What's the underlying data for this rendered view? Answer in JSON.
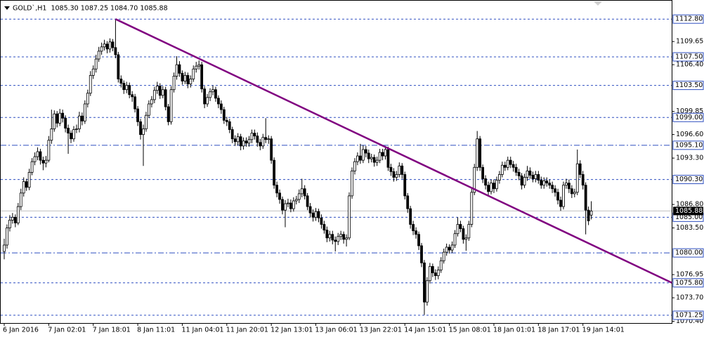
{
  "chart_data": {
    "type": "candlestick",
    "title": "GOLD`,H1  1085.30 1087.25 1084.70 1085.88",
    "categories": [
      "6 Jan 2016",
      null,
      null,
      null,
      null,
      null,
      null,
      null,
      null,
      null,
      null,
      null,
      null,
      null,
      null,
      null,
      "7 Jan 02:01",
      null,
      null,
      null,
      null,
      null,
      null,
      null,
      null,
      null,
      null,
      null,
      null,
      null,
      null,
      null,
      "7 Jan 18:01",
      null,
      null,
      null,
      null,
      null,
      null,
      null,
      null,
      null,
      null,
      null,
      null,
      null,
      null,
      null,
      "8 Jan 11:01",
      null,
      null,
      null,
      null,
      null,
      null,
      null,
      null,
      null,
      null,
      null,
      null,
      null,
      null,
      null,
      "11 Jan 04:01",
      null,
      null,
      null,
      null,
      null,
      null,
      null,
      null,
      null,
      null,
      null,
      null,
      null,
      null,
      null,
      "11 Jan 20:01",
      null,
      null,
      null,
      null,
      null,
      null,
      null,
      null,
      null,
      null,
      null,
      null,
      null,
      null,
      null,
      "12 Jan 13:01",
      null,
      null,
      null,
      null,
      null,
      null,
      null,
      null,
      null,
      null,
      null,
      null,
      null,
      null,
      null,
      "13 Jan 06:01",
      null,
      null,
      null,
      null,
      null,
      null,
      null,
      null,
      null,
      null,
      null,
      null,
      null,
      null,
      null,
      "13 Jan 22:01",
      null,
      null,
      null,
      null,
      null,
      null,
      null,
      null,
      null,
      null,
      null,
      null,
      null,
      null,
      null,
      "14 Jan 15:01",
      null,
      null,
      null,
      null,
      null,
      null,
      null,
      null,
      null,
      null,
      null,
      null,
      null,
      null,
      null,
      "15 Jan 08:01",
      null,
      null,
      null,
      null,
      null,
      null,
      null,
      null,
      null,
      null,
      null,
      null,
      null,
      null,
      null,
      "18 Jan 01:01",
      null,
      null,
      null,
      null,
      null,
      null,
      null,
      null,
      null,
      null,
      null,
      null,
      null,
      null,
      null,
      "18 Jan 17:01",
      null,
      null,
      null,
      null,
      null,
      null,
      null,
      null,
      null,
      null,
      null,
      null,
      null,
      null,
      null,
      "19 Jan 14:01",
      null,
      null,
      null
    ],
    "open": [
      1080.2,
      1081.1,
      1083.5,
      1084.6,
      1085.0,
      1084.2,
      1086.5,
      1088.4,
      1090.0,
      1089.2,
      1091.3,
      1092.8,
      1093.5,
      1094.2,
      1093.0,
      1092.6,
      1093.0,
      1095.8,
      1097.4,
      1099.5,
      1098.2,
      1099.6,
      1098.9,
      1097.5,
      1096.8,
      1096.0,
      1097.3,
      1097.4,
      1099.2,
      1098.5,
      1100.9,
      1102.4,
      1104.9,
      1105.8,
      1107.2,
      1108.3,
      1108.9,
      1109.3,
      1108.6,
      1109.6,
      1108.8,
      1107.8,
      1104.4,
      1103.8,
      1102.9,
      1103.5,
      1102.2,
      1101.9,
      1100.2,
      1098.4,
      1096.6,
      1097.4,
      1099.3,
      1100.9,
      1101.5,
      1102.8,
      1103.4,
      1102.1,
      1102.9,
      1100.5,
      1098.4,
      1102.9,
      1104.8,
      1106.4,
      1105.2,
      1104.1,
      1104.9,
      1103.7,
      1104.4,
      1105.8,
      1106.2,
      1106.4,
      1103.0,
      1100.9,
      1101.8,
      1102.6,
      1102.9,
      1101.7,
      1100.9,
      1100.1,
      1098.6,
      1098.4,
      1097.3,
      1096.0,
      1095.6,
      1096.3,
      1095.0,
      1095.7,
      1095.4,
      1095.9,
      1096.8,
      1096.4,
      1095.5,
      1095.0,
      1096.2,
      1095.9,
      1096.0,
      1093.0,
      1089.5,
      1088.4,
      1087.5,
      1086.0,
      1086.9,
      1087.0,
      1086.2,
      1087.3,
      1087.5,
      1088.3,
      1089.0,
      1088.0,
      1086.5,
      1085.6,
      1085.0,
      1085.8,
      1084.9,
      1084.0,
      1083.2,
      1082.1,
      1082.6,
      1081.8,
      1081.6,
      1082.3,
      1082.6,
      1081.9,
      1082.1,
      1088.0,
      1091.5,
      1092.8,
      1093.6,
      1093.0,
      1094.5,
      1094.0,
      1093.2,
      1093.4,
      1092.7,
      1093.0,
      1094.1,
      1093.6,
      1094.5,
      1092.0,
      1091.4,
      1090.6,
      1091.0,
      1092.2,
      1091.0,
      1088.0,
      1086.2,
      1084.0,
      1083.1,
      1082.6,
      1081.0,
      1078.6,
      1073.1,
      1076.1,
      1078.1,
      1077.2,
      1076.8,
      1077.6,
      1078.9,
      1080.1,
      1080.8,
      1080.4,
      1081.1,
      1082.7,
      1084.0,
      1083.4,
      1081.9,
      1082.1,
      1084.0,
      1088.5,
      1092.0,
      1096.0,
      1092.0,
      1090.4,
      1089.5,
      1088.6,
      1089.8,
      1089.0,
      1090.2,
      1091.0,
      1092.3,
      1092.0,
      1093.0,
      1092.4,
      1092.0,
      1091.3,
      1090.8,
      1089.5,
      1090.6,
      1091.5,
      1090.9,
      1090.4,
      1091.0,
      1090.2,
      1089.5,
      1090.1,
      1089.8,
      1089.5,
      1089.0,
      1088.5,
      1087.4,
      1086.5,
      1089.5,
      1089.8,
      1089.0,
      1088.3,
      1088.5,
      1092.5,
      1091.0,
      1089.5,
      1086.0,
      1085.3
    ],
    "high": [
      1082.0,
      1084.0,
      1085.3,
      1085.6,
      1085.4,
      1087.0,
      1089.0,
      1090.6,
      1090.4,
      1091.8,
      1093.3,
      1094.1,
      1094.8,
      1094.6,
      1093.5,
      1093.6,
      1096.4,
      1100.1,
      1100.0,
      1099.9,
      1100.2,
      1100.1,
      1099.3,
      1098.0,
      1097.2,
      1097.8,
      1098.0,
      1099.8,
      1099.7,
      1101.4,
      1102.9,
      1105.5,
      1106.3,
      1107.8,
      1108.9,
      1109.5,
      1109.9,
      1109.7,
      1110.1,
      1110.0,
      1112.8,
      1108.2,
      1104.9,
      1104.2,
      1104.0,
      1103.9,
      1102.7,
      1102.3,
      1100.6,
      1098.8,
      1098.0,
      1099.8,
      1101.4,
      1102.0,
      1103.3,
      1104.0,
      1103.8,
      1103.4,
      1103.3,
      1100.9,
      1103.4,
      1105.3,
      1107.6,
      1106.9,
      1105.6,
      1105.4,
      1105.3,
      1104.9,
      1106.3,
      1106.8,
      1107.0,
      1106.8,
      1103.4,
      1102.3,
      1103.1,
      1103.5,
      1103.3,
      1102.1,
      1101.4,
      1100.5,
      1099.1,
      1098.8,
      1097.7,
      1096.5,
      1096.8,
      1096.7,
      1096.2,
      1096.2,
      1096.4,
      1097.3,
      1097.3,
      1096.9,
      1096.0,
      1096.7,
      1098.9,
      1096.5,
      1096.4,
      1093.4,
      1090.0,
      1088.9,
      1087.9,
      1087.4,
      1087.6,
      1087.5,
      1087.8,
      1088.0,
      1088.9,
      1090.4,
      1089.5,
      1088.4,
      1087.0,
      1086.1,
      1086.3,
      1086.2,
      1085.4,
      1084.5,
      1083.7,
      1083.1,
      1083.1,
      1082.3,
      1082.8,
      1083.1,
      1083.0,
      1082.6,
      1088.5,
      1092.0,
      1093.3,
      1094.1,
      1095.3,
      1095.1,
      1095.0,
      1094.5,
      1093.9,
      1093.8,
      1093.5,
      1094.6,
      1094.6,
      1095.0,
      1094.9,
      1092.5,
      1091.9,
      1091.5,
      1092.7,
      1092.6,
      1091.4,
      1088.4,
      1086.6,
      1084.5,
      1083.6,
      1083.0,
      1081.4,
      1079.0,
      1076.6,
      1078.6,
      1078.5,
      1077.7,
      1078.1,
      1079.4,
      1080.6,
      1081.3,
      1081.2,
      1081.6,
      1083.2,
      1085.0,
      1084.5,
      1083.8,
      1082.6,
      1084.5,
      1089.0,
      1092.5,
      1097.1,
      1096.4,
      1092.4,
      1090.9,
      1090.0,
      1090.3,
      1090.3,
      1090.7,
      1091.5,
      1092.8,
      1092.8,
      1093.5,
      1093.5,
      1092.9,
      1092.5,
      1091.8,
      1091.2,
      1091.1,
      1092.2,
      1092.0,
      1091.4,
      1091.5,
      1091.5,
      1090.7,
      1090.6,
      1090.6,
      1090.3,
      1090.0,
      1089.5,
      1089.0,
      1087.9,
      1090.0,
      1090.4,
      1090.3,
      1089.5,
      1089.0,
      1094.5,
      1093.0,
      1091.5,
      1089.9,
      1086.5,
      1087.25
    ],
    "low": [
      1079.1,
      1080.6,
      1083.0,
      1084.1,
      1083.6,
      1083.9,
      1086.0,
      1087.9,
      1088.7,
      1088.8,
      1090.9,
      1092.3,
      1093.0,
      1092.4,
      1091.6,
      1092.0,
      1092.7,
      1095.3,
      1097.0,
      1097.6,
      1097.8,
      1098.3,
      1096.9,
      1093.9,
      1095.4,
      1095.6,
      1096.8,
      1096.9,
      1097.9,
      1098.1,
      1100.4,
      1102.0,
      1104.4,
      1105.3,
      1106.8,
      1107.8,
      1108.4,
      1108.0,
      1108.1,
      1108.3,
      1107.3,
      1103.9,
      1103.2,
      1102.3,
      1102.4,
      1101.7,
      1101.2,
      1099.7,
      1097.8,
      1095.9,
      1092.2,
      1097.0,
      1098.9,
      1100.4,
      1101.0,
      1102.3,
      1101.6,
      1101.7,
      1100.0,
      1097.9,
      1098.0,
      1102.5,
      1104.3,
      1104.7,
      1103.6,
      1103.7,
      1103.1,
      1103.2,
      1104.0,
      1105.3,
      1105.7,
      1102.5,
      1100.3,
      1100.5,
      1101.3,
      1102.1,
      1101.2,
      1100.3,
      1099.5,
      1098.1,
      1097.8,
      1096.8,
      1095.4,
      1095.0,
      1095.1,
      1094.4,
      1094.5,
      1094.9,
      1094.9,
      1095.4,
      1095.9,
      1094.9,
      1094.4,
      1094.6,
      1095.4,
      1095.3,
      1092.5,
      1089.0,
      1087.8,
      1086.9,
      1085.4,
      1083.6,
      1086.4,
      1085.7,
      1085.8,
      1086.8,
      1087.0,
      1087.8,
      1087.5,
      1086.0,
      1085.0,
      1084.4,
      1084.5,
      1084.3,
      1083.4,
      1082.7,
      1081.5,
      1081.6,
      1081.2,
      1080.2,
      1081.1,
      1081.8,
      1081.3,
      1080.9,
      1081.8,
      1087.6,
      1091.0,
      1092.3,
      1092.5,
      1092.6,
      1093.4,
      1092.6,
      1092.7,
      1092.1,
      1092.2,
      1092.6,
      1093.0,
      1093.1,
      1091.5,
      1090.8,
      1090.0,
      1090.1,
      1090.6,
      1090.4,
      1087.5,
      1085.6,
      1083.4,
      1082.5,
      1082.0,
      1080.4,
      1078.0,
      1071.3,
      1072.6,
      1075.7,
      1076.6,
      1076.2,
      1076.3,
      1077.2,
      1078.5,
      1079.6,
      1079.9,
      1080.0,
      1080.7,
      1082.3,
      1082.9,
      1081.3,
      1080.3,
      1081.7,
      1083.6,
      1088.1,
      1091.5,
      1091.5,
      1089.8,
      1088.9,
      1088.0,
      1088.2,
      1088.4,
      1088.6,
      1089.7,
      1090.6,
      1091.5,
      1091.6,
      1091.9,
      1091.4,
      1090.8,
      1090.2,
      1088.9,
      1089.1,
      1090.1,
      1090.4,
      1089.9,
      1089.9,
      1089.7,
      1089.0,
      1089.0,
      1089.3,
      1089.0,
      1088.4,
      1087.9,
      1086.8,
      1085.9,
      1086.1,
      1089.0,
      1088.4,
      1087.7,
      1087.8,
      1088.1,
      1090.5,
      1088.9,
      1082.6,
      1083.9,
      1084.7
    ],
    "close": [
      1081.1,
      1083.5,
      1084.6,
      1085.0,
      1084.2,
      1086.5,
      1088.4,
      1090.0,
      1089.2,
      1091.3,
      1092.8,
      1093.5,
      1094.2,
      1093.0,
      1092.6,
      1093.0,
      1095.8,
      1097.4,
      1099.5,
      1098.2,
      1099.6,
      1098.9,
      1097.5,
      1096.8,
      1096.0,
      1097.3,
      1097.4,
      1099.2,
      1098.5,
      1100.9,
      1102.4,
      1104.9,
      1105.8,
      1107.2,
      1108.3,
      1108.9,
      1109.3,
      1108.6,
      1109.6,
      1108.8,
      1107.8,
      1104.4,
      1103.8,
      1102.9,
      1103.5,
      1102.2,
      1101.9,
      1100.2,
      1098.4,
      1096.6,
      1097.4,
      1099.3,
      1100.9,
      1101.5,
      1102.8,
      1103.4,
      1102.1,
      1102.9,
      1100.5,
      1098.4,
      1102.9,
      1104.8,
      1106.4,
      1105.2,
      1104.1,
      1104.9,
      1103.7,
      1104.4,
      1105.8,
      1106.2,
      1106.4,
      1103.0,
      1100.9,
      1101.8,
      1102.6,
      1102.9,
      1101.7,
      1100.9,
      1100.1,
      1098.6,
      1098.4,
      1097.3,
      1096.0,
      1095.6,
      1096.3,
      1095.0,
      1095.7,
      1095.4,
      1095.9,
      1096.8,
      1096.4,
      1095.5,
      1095.0,
      1096.2,
      1095.9,
      1096.0,
      1093.0,
      1089.5,
      1088.4,
      1087.5,
      1086.0,
      1086.9,
      1087.0,
      1086.2,
      1087.3,
      1087.5,
      1088.3,
      1089.0,
      1088.0,
      1086.5,
      1085.6,
      1085.0,
      1085.8,
      1084.9,
      1084.0,
      1083.2,
      1082.1,
      1082.6,
      1081.8,
      1081.6,
      1082.3,
      1082.6,
      1081.9,
      1082.1,
      1088.0,
      1091.5,
      1092.8,
      1093.6,
      1093.0,
      1094.5,
      1094.0,
      1093.2,
      1093.4,
      1092.7,
      1093.0,
      1094.1,
      1093.6,
      1094.5,
      1092.0,
      1091.4,
      1090.6,
      1091.0,
      1092.2,
      1091.0,
      1088.0,
      1086.2,
      1084.0,
      1083.1,
      1082.6,
      1081.0,
      1078.6,
      1073.1,
      1076.1,
      1078.1,
      1077.2,
      1076.8,
      1077.6,
      1078.9,
      1080.1,
      1080.8,
      1080.4,
      1081.1,
      1082.7,
      1084.0,
      1083.4,
      1081.9,
      1082.1,
      1084.0,
      1088.5,
      1092.0,
      1096.0,
      1092.0,
      1090.4,
      1089.5,
      1088.6,
      1089.8,
      1089.0,
      1090.2,
      1091.0,
      1092.3,
      1092.0,
      1093.0,
      1092.4,
      1092.0,
      1091.3,
      1090.8,
      1089.5,
      1090.6,
      1091.5,
      1090.9,
      1090.4,
      1091.0,
      1090.2,
      1089.5,
      1090.1,
      1089.8,
      1089.5,
      1089.0,
      1088.5,
      1087.4,
      1086.5,
      1089.5,
      1089.8,
      1089.0,
      1088.3,
      1088.5,
      1092.5,
      1091.0,
      1089.5,
      1086.0,
      1084.5,
      1085.88
    ],
    "ylim": [
      1070.16,
      1115.38
    ],
    "yticks": [
      1109.65,
      {
        "value": 1106.4,
        "label": "1106.40"
      },
      1099.85,
      {
        "value": 1096.6,
        "label": "1096.60"
      },
      {
        "value": 1093.3,
        "label": "1093.30"
      },
      {
        "value": 1086.8,
        "label": "1086.80"
      },
      {
        "value": 1083.5,
        "label": "1083.50"
      },
      1076.95,
      {
        "value": 1073.7,
        "label": "1073.70"
      },
      {
        "value": 1070.4,
        "label": "1070.40"
      }
    ],
    "levels": [
      {
        "value": 1112.8,
        "label": "1112.80",
        "style": "dash"
      },
      {
        "value": 1107.5,
        "label": "1107.50",
        "style": "dash"
      },
      {
        "value": 1103.5,
        "label": "1103.50",
        "style": "dash"
      },
      {
        "value": 1099.0,
        "label": "1099.00",
        "style": "dash"
      },
      {
        "value": 1095.1,
        "label": "1095.10",
        "style": "dashdot"
      },
      {
        "value": 1090.3,
        "label": "1090.30",
        "style": "dash"
      },
      {
        "value": 1085.0,
        "label": "1085.00",
        "style": "dash"
      },
      {
        "value": 1080.0,
        "label": "1080.00",
        "style": "dashdot"
      },
      {
        "value": 1075.8,
        "label": "1075.80",
        "style": "dash"
      },
      {
        "value": 1071.25,
        "label": "1071.25",
        "style": "dash"
      }
    ],
    "level_color": "#2e4fc0",
    "current_price": 1085.88,
    "trendline": {
      "x": [
        40,
        240
      ],
      "y": [
        1112.8,
        1075.8
      ],
      "color": "#800080"
    }
  }
}
